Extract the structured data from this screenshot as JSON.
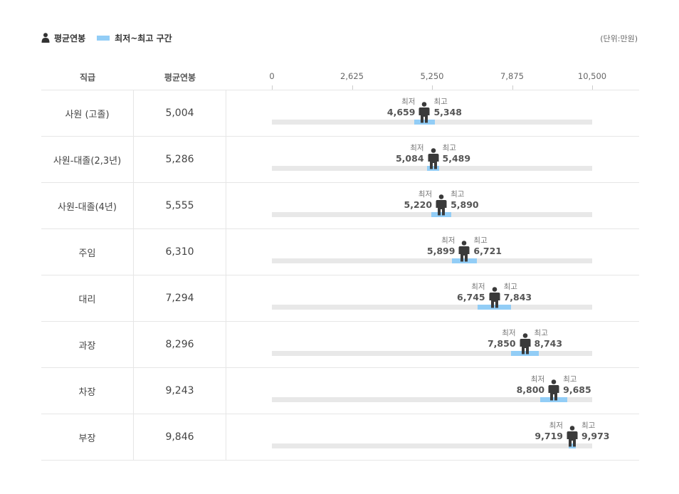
{
  "legend": {
    "avg_label": "평균연봉",
    "range_label": "최저~최고 구간",
    "unit": "(단위:만원)",
    "range_color": "#92cdf6"
  },
  "header": {
    "grade": "직급",
    "avg": "평균연봉"
  },
  "labels": {
    "min_caption": "최저",
    "max_caption": "최고"
  },
  "chart_data": {
    "type": "range-bar",
    "xlim": [
      0,
      10500
    ],
    "ticks": [
      "0",
      "2,625",
      "5,250",
      "7,875",
      "10,500"
    ],
    "tick_values": [
      0,
      2625,
      5250,
      7875,
      10500
    ],
    "rows": [
      {
        "grade": "사원 (고졸)",
        "avg": 5004,
        "avg_label": "5,004",
        "min": 4659,
        "min_label": "4,659",
        "max": 5348,
        "max_label": "5,348"
      },
      {
        "grade": "사원-대졸(2,3년)",
        "avg": 5286,
        "avg_label": "5,286",
        "min": 5084,
        "min_label": "5,084",
        "max": 5489,
        "max_label": "5,489"
      },
      {
        "grade": "사원-대졸(4년)",
        "avg": 5555,
        "avg_label": "5,555",
        "min": 5220,
        "min_label": "5,220",
        "max": 5890,
        "max_label": "5,890"
      },
      {
        "grade": "주임",
        "avg": 6310,
        "avg_label": "6,310",
        "min": 5899,
        "min_label": "5,899",
        "max": 6721,
        "max_label": "6,721"
      },
      {
        "grade": "대리",
        "avg": 7294,
        "avg_label": "7,294",
        "min": 6745,
        "min_label": "6,745",
        "max": 7843,
        "max_label": "7,843"
      },
      {
        "grade": "과장",
        "avg": 8296,
        "avg_label": "8,296",
        "min": 7850,
        "min_label": "7,850",
        "max": 8743,
        "max_label": "8,743"
      },
      {
        "grade": "차장",
        "avg": 9243,
        "avg_label": "9,243",
        "min": 8800,
        "min_label": "8,800",
        "max": 9685,
        "max_label": "9,685"
      },
      {
        "grade": "부장",
        "avg": 9846,
        "avg_label": "9,846",
        "min": 9719,
        "min_label": "9,719",
        "max": 9973,
        "max_label": "9,973"
      }
    ]
  }
}
